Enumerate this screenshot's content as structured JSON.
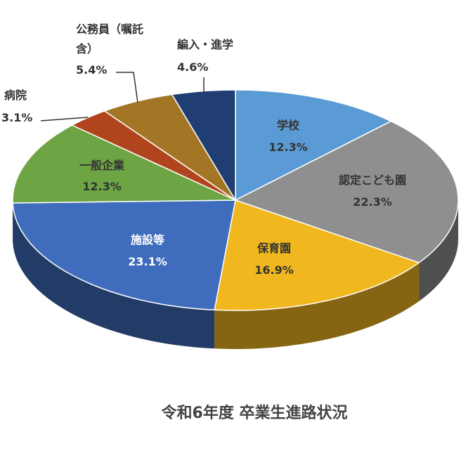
{
  "chart_data": {
    "type": "pie3d",
    "title": "令和6年度 卒業生進路状況",
    "categories": [
      "学校",
      "認定こども園",
      "保育園",
      "施設等",
      "一般企業",
      "病院",
      "公務員（嘱託含）",
      "編入・進学"
    ],
    "values": [
      12.3,
      22.3,
      16.9,
      23.1,
      12.3,
      3.1,
      5.4,
      4.6
    ],
    "value_labels": [
      "12.3%",
      "22.3%",
      "16.9%",
      "23.1%",
      "12.3%",
      "3.1%",
      "5.4%",
      "4.6%"
    ],
    "colors": [
      "#5b9bd5",
      "#8f8f8f",
      "#f1b71f",
      "#3f6cbc",
      "#6da544",
      "#b0441c",
      "#a27624",
      "#213e72"
    ]
  }
}
